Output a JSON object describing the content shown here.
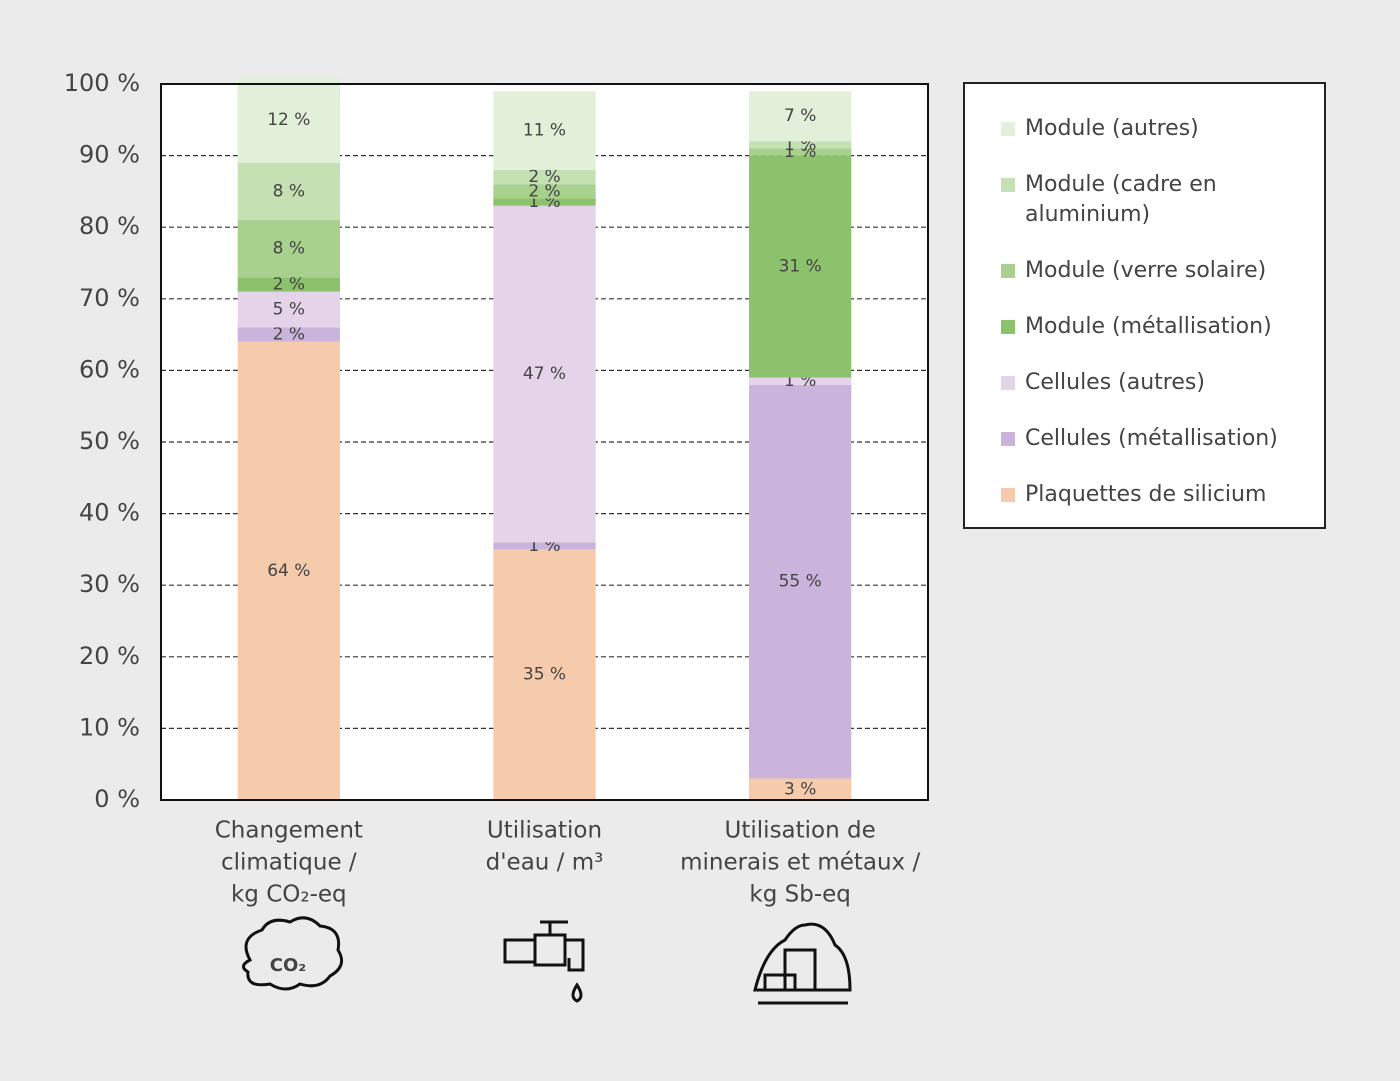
{
  "chart_data": {
    "type": "stacked_bar",
    "categories": [
      [
        "Changement",
        "climatique /",
        "kg CO₂-eq"
      ],
      [
        "Utilisation",
        "d'eau / m³"
      ],
      [
        "Utilisation de",
        "minerais et métaux /",
        "kg Sb-eq"
      ]
    ],
    "series": [
      {
        "name": "Plaquettes de silicium",
        "color": "#f6cbab",
        "values": [
          64,
          35,
          3
        ],
        "value_labels": [
          "64 %",
          "35 %",
          "3 %"
        ]
      },
      {
        "name": "Cellules (métallisation)",
        "color": "#cbb4db",
        "values": [
          2,
          1,
          55
        ],
        "value_labels": [
          "2 %",
          "1 %",
          "55 %"
        ]
      },
      {
        "name": "Cellules (autres)",
        "color": "#e5d3e9",
        "values": [
          5,
          47,
          1
        ],
        "value_labels": [
          "5 %",
          "47 %",
          "1 %"
        ]
      },
      {
        "name": "Module (métallisation)",
        "color": "#8cc26b",
        "values": [
          2,
          1,
          31
        ],
        "value_labels": [
          "2 %",
          "1 %",
          "31 %"
        ]
      },
      {
        "name": "Module (verre solaire)",
        "color": "#a9d18e",
        "values": [
          8,
          2,
          1
        ],
        "value_labels": [
          "8 %",
          "2 %",
          "1 %"
        ]
      },
      {
        "name": "Module (cadre en aluminium)",
        "color": "#c5e0b3",
        "values": [
          8,
          2,
          1
        ],
        "value_labels": [
          "8 %",
          "2 %",
          "1 %"
        ]
      },
      {
        "name": "Module (autres)",
        "color": "#e2efd9",
        "values": [
          12,
          11,
          7
        ],
        "value_labels": [
          "12 %",
          "11 %",
          "7 %"
        ]
      }
    ],
    "ylim": [
      0,
      100
    ],
    "yticks": [
      {
        "value": 0,
        "label": "0 %"
      },
      {
        "value": 10,
        "label": "10 %"
      },
      {
        "value": 20,
        "label": "20 %"
      },
      {
        "value": 30,
        "label": "30 %"
      },
      {
        "value": 40,
        "label": "40 %"
      },
      {
        "value": 50,
        "label": "50 %"
      },
      {
        "value": 60,
        "label": "60 %"
      },
      {
        "value": 70,
        "label": "70 %"
      },
      {
        "value": 80,
        "label": "80 %"
      },
      {
        "value": 90,
        "label": "90 %"
      },
      {
        "value": 100,
        "label": "100 %"
      }
    ],
    "grid": true,
    "legend": "right"
  }
}
